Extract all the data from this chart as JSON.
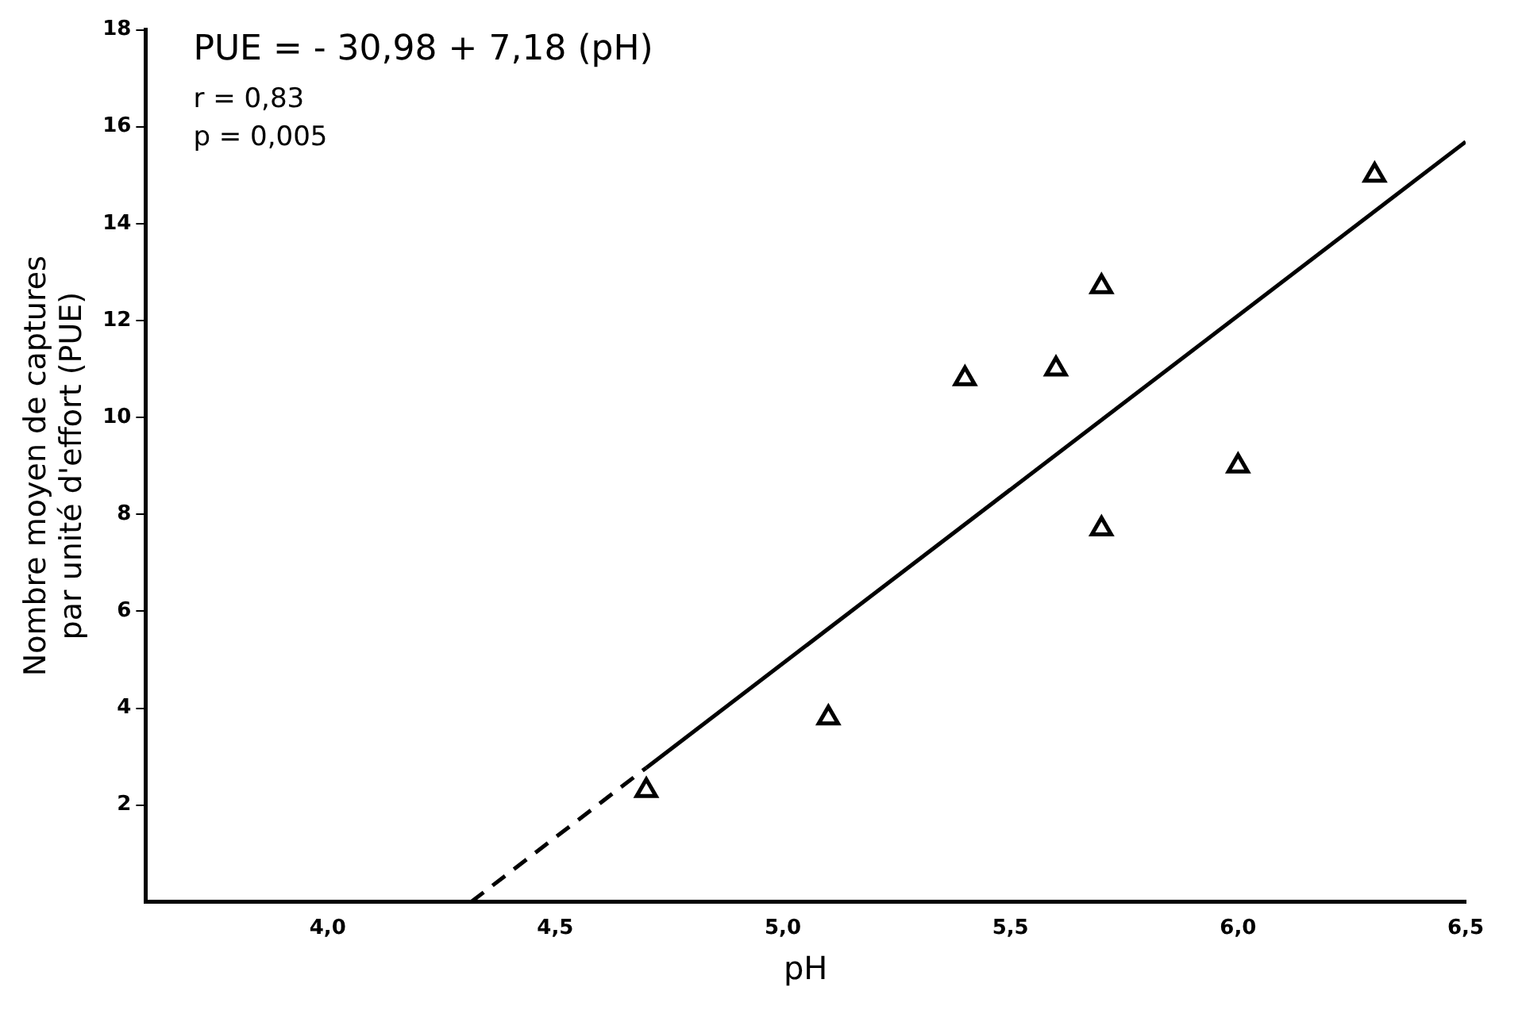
{
  "chart_data": {
    "type": "scatter",
    "xlabel": "pH",
    "ylabel": "Nombre moyen de captures\npar unité d'effort (PUE)",
    "annotations": [
      "PUE = - 30,98 + 7,18 (pH)",
      "r = 0,83",
      "p = 0,005"
    ],
    "series": [
      {
        "type": "scatter",
        "color": "#000000",
        "marker": "triangle",
        "x": [
          4.7,
          5.1,
          5.4,
          5.6,
          5.7,
          5.7,
          6.0,
          6.3
        ],
        "values": [
          2.3,
          3.8,
          10.8,
          11.0,
          12.7,
          7.7,
          9.0,
          15.0
        ]
      },
      {
        "type": "line",
        "color": "#000000",
        "marker": "none",
        "line_style": "dashed",
        "x": [
          4.315,
          4.7
        ],
        "values": [
          0,
          2.77
        ]
      },
      {
        "type": "line",
        "color": "#000000",
        "marker": "none",
        "line_style": "solid",
        "x": [
          4.7,
          6.5
        ],
        "values": [
          2.77,
          15.69
        ]
      }
    ],
    "xlim": [
      3.6,
      6.5
    ],
    "xticks": [
      {
        "value": 4,
        "label": "4,0"
      },
      {
        "value": 4.5,
        "label": "4,5"
      },
      {
        "value": 5,
        "label": "5,0"
      },
      {
        "value": 5.5,
        "label": "5,5"
      },
      {
        "value": 6,
        "label": "6,0"
      },
      {
        "value": 6.5,
        "label": "6,5"
      }
    ],
    "ylim": [
      0,
      18
    ],
    "yticks": [
      2,
      4,
      6,
      8,
      10,
      12,
      14,
      16,
      18
    ],
    "grid": false,
    "legend": false
  }
}
